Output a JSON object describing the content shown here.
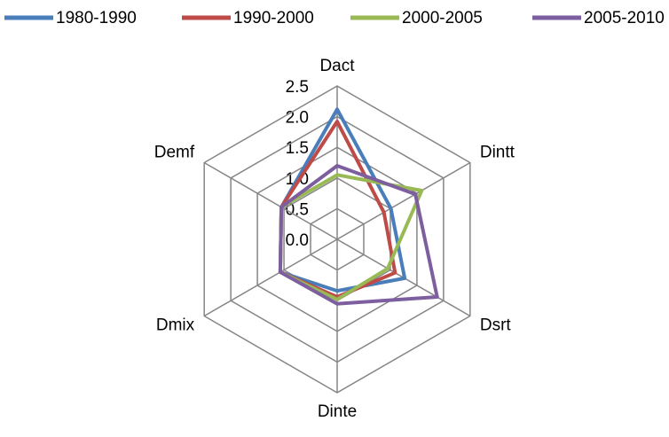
{
  "chart_data": {
    "type": "radar",
    "categories": [
      "Dact",
      "Dintt",
      "Dsrt",
      "Dinte",
      "Dmix",
      "Demf"
    ],
    "series": [
      {
        "name": "1980-1990",
        "color": "#4a7ebb",
        "values": [
          2.12,
          1.01,
          1.27,
          0.84,
          1.07,
          1.05
        ]
      },
      {
        "name": "1990-2000",
        "color": "#be4b48",
        "values": [
          1.92,
          0.88,
          1.09,
          0.94,
          1.07,
          1.05
        ]
      },
      {
        "name": "2000-2005",
        "color": "#98b954",
        "values": [
          1.05,
          1.59,
          0.95,
          0.98,
          1.07,
          1.05
        ]
      },
      {
        "name": "2005-2010",
        "color": "#7d5fa0",
        "values": [
          1.2,
          1.47,
          1.88,
          1.05,
          1.07,
          1.05
        ]
      }
    ],
    "ylim": [
      0,
      2.5
    ],
    "yticks": [
      {
        "value": 0,
        "label": "0.0"
      },
      0.5,
      {
        "value": 1,
        "label": "1.0"
      },
      1.5,
      {
        "value": 2,
        "label": "2.0"
      },
      2.5
    ],
    "grid": true
  }
}
